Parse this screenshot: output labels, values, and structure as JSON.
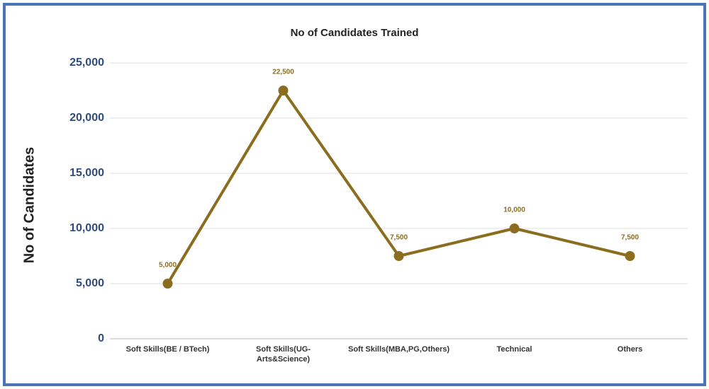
{
  "chart_data": {
    "type": "line",
    "title": "No of Candidates Trained",
    "y_label": "No of Candidates",
    "categories": [
      "Soft Skills(BE / BTech)",
      "Soft Skills(UG-Arts&Science)",
      "Soft Skills(MBA,PG,Others)",
      "Technical",
      "Others"
    ],
    "values": [
      5000,
      22500,
      7500,
      10000,
      7500
    ],
    "value_labels": [
      "5,000",
      "22,500",
      "7,500",
      "10,000",
      "7,500"
    ],
    "color": "#8b6d1f",
    "ylim": [
      0,
      25000
    ],
    "yticks": [
      0,
      {
        "value": 5000,
        "label": "5,000"
      },
      {
        "value": 10000,
        "label": "10,000"
      },
      {
        "value": 15000,
        "label": "15,000"
      },
      {
        "value": 20000,
        "label": "20,000"
      },
      {
        "value": 25000,
        "label": "25,000"
      }
    ],
    "grid": true
  }
}
